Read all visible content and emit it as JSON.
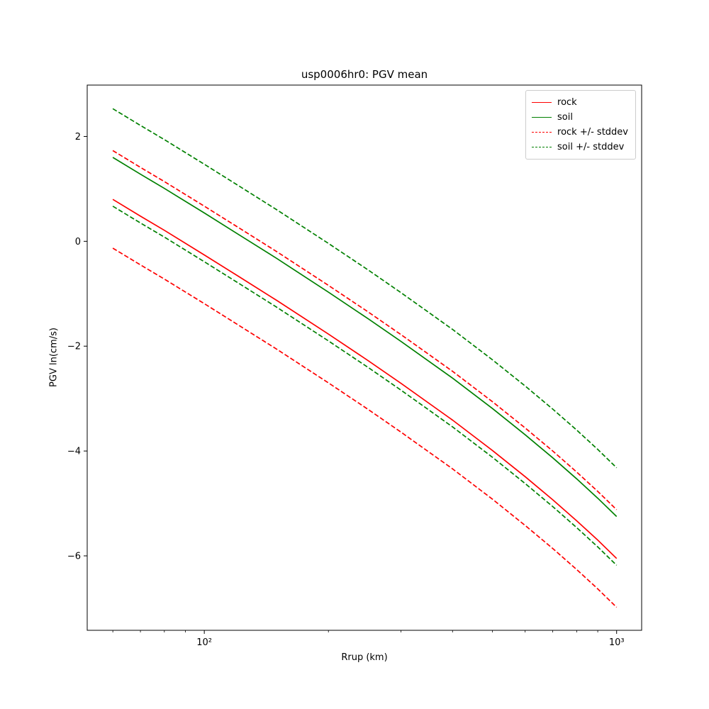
{
  "chart_data": {
    "type": "line",
    "title": "usp0006hr0: PGV mean",
    "xlabel": "Rrup (km)",
    "ylabel": "PGV ln(cm/s)",
    "x_scale": "log",
    "grid": false,
    "legend_position": "upper right",
    "xlim": [
      52,
      1150
    ],
    "ylim": [
      -7.42,
      2.98
    ],
    "x_major_ticks": [
      100,
      1000
    ],
    "x_major_tick_labels": [
      "10²",
      "10³"
    ],
    "x_minor_ticks": [
      60,
      70,
      80,
      90,
      200,
      300,
      400,
      500,
      600,
      700,
      800,
      900
    ],
    "y_ticks": [
      2,
      0,
      -2,
      -4,
      -6
    ],
    "y_tick_labels": [
      "2",
      "0",
      "−2",
      "−4",
      "−6"
    ],
    "x": [
      60,
      70,
      80,
      100,
      120,
      150,
      200,
      250,
      300,
      400,
      500,
      600,
      700,
      800,
      900,
      1000
    ],
    "series": [
      {
        "name": "rock",
        "color": "#ff0000",
        "dash": false,
        "values": [
          0.8,
          0.48,
          0.21,
          -0.26,
          -0.65,
          -1.13,
          -1.77,
          -2.28,
          -2.71,
          -3.41,
          -3.99,
          -4.49,
          -4.93,
          -5.33,
          -5.7,
          -6.05
        ]
      },
      {
        "name": "soil",
        "color": "#008000",
        "dash": false,
        "values": [
          1.6,
          1.28,
          1.01,
          0.54,
          0.15,
          -0.33,
          -0.97,
          -1.48,
          -1.91,
          -2.61,
          -3.19,
          -3.69,
          -4.13,
          -4.53,
          -4.9,
          -5.25
        ]
      },
      {
        "name": "rock +/- stddev",
        "color": "#ff0000",
        "dash": true,
        "upper": [
          1.73,
          1.41,
          1.14,
          0.67,
          0.28,
          -0.2,
          -0.84,
          -1.35,
          -1.78,
          -2.48,
          -3.06,
          -3.56,
          -4.0,
          -4.4,
          -4.77,
          -5.12
        ],
        "lower": [
          -0.13,
          -0.45,
          -0.72,
          -1.19,
          -1.58,
          -2.06,
          -2.7,
          -3.21,
          -3.64,
          -4.34,
          -4.92,
          -5.42,
          -5.86,
          -6.26,
          -6.63,
          -6.98
        ]
      },
      {
        "name": "soil +/- stddev",
        "color": "#008000",
        "dash": true,
        "upper": [
          2.53,
          2.21,
          1.94,
          1.47,
          1.08,
          0.6,
          -0.04,
          -0.55,
          -0.98,
          -1.68,
          -2.26,
          -2.76,
          -3.2,
          -3.6,
          -3.97,
          -4.32
        ],
        "lower": [
          0.67,
          0.35,
          0.08,
          -0.39,
          -0.78,
          -1.26,
          -1.9,
          -2.41,
          -2.84,
          -3.54,
          -4.12,
          -4.62,
          -5.06,
          -5.46,
          -5.83,
          -6.18
        ]
      }
    ]
  }
}
